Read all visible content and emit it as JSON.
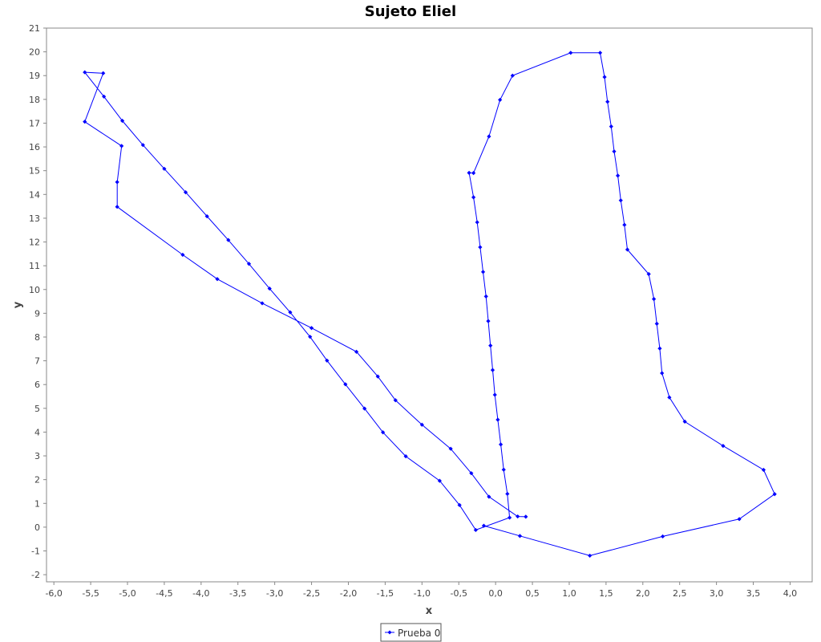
{
  "chart_data": {
    "type": "line",
    "title": "Sujeto Eliel",
    "xlabel": "x",
    "ylabel": "y",
    "xlim": [
      -6.1,
      4.3
    ],
    "ylim": [
      -2.3,
      21
    ],
    "xticks": [
      -6.0,
      -5.5,
      -5.0,
      -4.5,
      -4.0,
      -3.5,
      -3.0,
      -2.5,
      -2.0,
      -1.5,
      -1.0,
      -0.5,
      0.0,
      0.5,
      1.0,
      1.5,
      2.0,
      2.5,
      3.0,
      3.5,
      4.0
    ],
    "xtick_labels": [
      "-6,0",
      "-5,5",
      "-5,0",
      "-4,5",
      "-4,0",
      "-3,5",
      "-3,0",
      "-2,5",
      "-2,0",
      "-1,5",
      "-1,0",
      "-0,5",
      "0,0",
      "0,5",
      "1,0",
      "1,5",
      "2,0",
      "2,5",
      "3,0",
      "3,5",
      "4,0"
    ],
    "yticks": [
      -2,
      -1,
      0,
      1,
      2,
      3,
      4,
      5,
      6,
      7,
      8,
      9,
      10,
      11,
      12,
      13,
      14,
      15,
      16,
      17,
      18,
      19,
      20,
      21
    ],
    "ytick_labels": [
      "-2",
      "-1",
      "0",
      "1",
      "2",
      "3",
      "4",
      "5",
      "6",
      "7",
      "8",
      "9",
      "10",
      "11",
      "12",
      "13",
      "14",
      "15",
      "16",
      "17",
      "18",
      "19",
      "20",
      "21"
    ],
    "grid": false,
    "legend": "bottom-center",
    "color": "#0000ff",
    "series": [
      {
        "name": "Prueba 0",
        "points": [
          [
            0.41,
            0.44
          ],
          [
            0.3,
            0.45
          ],
          [
            -0.09,
            1.28
          ],
          [
            -0.33,
            2.27
          ],
          [
            -0.61,
            3.3
          ],
          [
            -1.0,
            4.31
          ],
          [
            -1.36,
            5.34
          ],
          [
            -1.6,
            6.34
          ],
          [
            -1.89,
            7.38
          ],
          [
            -2.5,
            8.38
          ],
          [
            -3.17,
            9.42
          ],
          [
            -3.78,
            10.44
          ],
          [
            -4.25,
            11.46
          ],
          [
            -5.14,
            13.48
          ],
          [
            -5.14,
            14.52
          ],
          [
            -5.08,
            16.04
          ],
          [
            -5.58,
            17.06
          ],
          [
            -5.33,
            19.1
          ],
          [
            -5.58,
            19.14
          ],
          [
            -5.32,
            18.12
          ],
          [
            -5.07,
            17.1
          ],
          [
            -4.79,
            16.08
          ],
          [
            -4.5,
            15.08
          ],
          [
            -4.21,
            14.09
          ],
          [
            -3.92,
            13.08
          ],
          [
            -3.63,
            12.08
          ],
          [
            -3.35,
            11.08
          ],
          [
            -3.07,
            10.04
          ],
          [
            -2.79,
            9.04
          ],
          [
            -2.52,
            8.01
          ],
          [
            -2.29,
            7.01
          ],
          [
            -2.04,
            6.01
          ],
          [
            -1.78,
            4.99
          ],
          [
            -1.53,
            3.99
          ],
          [
            -1.22,
            2.98
          ],
          [
            -0.76,
            1.95
          ],
          [
            -0.49,
            0.93
          ],
          [
            -0.27,
            -0.12
          ],
          [
            0.19,
            0.4
          ],
          [
            0.16,
            1.4
          ],
          [
            0.11,
            2.42
          ],
          [
            0.07,
            3.48
          ],
          [
            0.03,
            4.52
          ],
          [
            -0.01,
            5.57
          ],
          [
            -0.04,
            6.61
          ],
          [
            -0.07,
            7.64
          ],
          [
            -0.1,
            8.67
          ],
          [
            -0.13,
            9.71
          ],
          [
            -0.17,
            10.74
          ],
          [
            -0.21,
            11.78
          ],
          [
            -0.25,
            12.83
          ],
          [
            -0.3,
            13.88
          ],
          [
            -0.36,
            14.91
          ],
          [
            -0.3,
            14.9
          ],
          [
            -0.09,
            16.44
          ],
          [
            0.06,
            17.98
          ],
          [
            0.23,
            19.0
          ],
          [
            1.02,
            19.96
          ],
          [
            1.42,
            19.96
          ],
          [
            1.48,
            18.94
          ],
          [
            1.52,
            17.9
          ],
          [
            1.57,
            16.86
          ],
          [
            1.61,
            15.81
          ],
          [
            1.66,
            14.79
          ],
          [
            1.7,
            13.75
          ],
          [
            1.75,
            12.72
          ],
          [
            1.79,
            11.68
          ],
          [
            2.08,
            10.65
          ],
          [
            2.15,
            9.6
          ],
          [
            2.19,
            8.56
          ],
          [
            2.23,
            7.52
          ],
          [
            2.26,
            6.48
          ],
          [
            2.36,
            5.46
          ],
          [
            2.57,
            4.44
          ],
          [
            3.09,
            3.42
          ],
          [
            3.64,
            2.41
          ],
          [
            3.79,
            1.39
          ],
          [
            3.31,
            0.34
          ],
          [
            2.27,
            -0.39
          ],
          [
            1.28,
            -1.2
          ],
          [
            0.33,
            -0.37
          ],
          [
            -0.16,
            0.06
          ]
        ]
      }
    ]
  }
}
